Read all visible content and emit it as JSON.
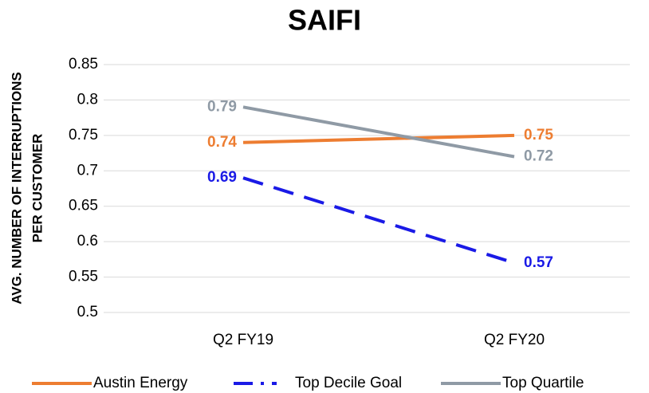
{
  "chart_data": {
    "type": "line",
    "title": "SAIFI",
    "y_label_lines": [
      "AVG. NUMBER OF INTERRUPTIONS",
      "PER CUSTOMER"
    ],
    "categories": [
      "Q2 FY19",
      "Q2 FY20"
    ],
    "series": [
      {
        "name": "Austin Energy",
        "color": "#ED7D31",
        "line_style": "solid",
        "values": [
          0.74,
          0.75
        ]
      },
      {
        "name": "Top Decile Goal",
        "color": "#1a1ae6",
        "line_style": "dashed",
        "values": [
          0.69,
          0.57
        ]
      },
      {
        "name": "Top Quartile",
        "color": "#8f9aa5",
        "line_style": "solid",
        "values": [
          0.79,
          0.72
        ]
      }
    ],
    "ylim": [
      0.5,
      0.85
    ],
    "yticks": [
      0.5,
      0.55,
      0.6,
      0.65,
      0.7,
      0.75,
      0.8,
      0.85
    ],
    "grid": true,
    "legend": "bottom"
  }
}
